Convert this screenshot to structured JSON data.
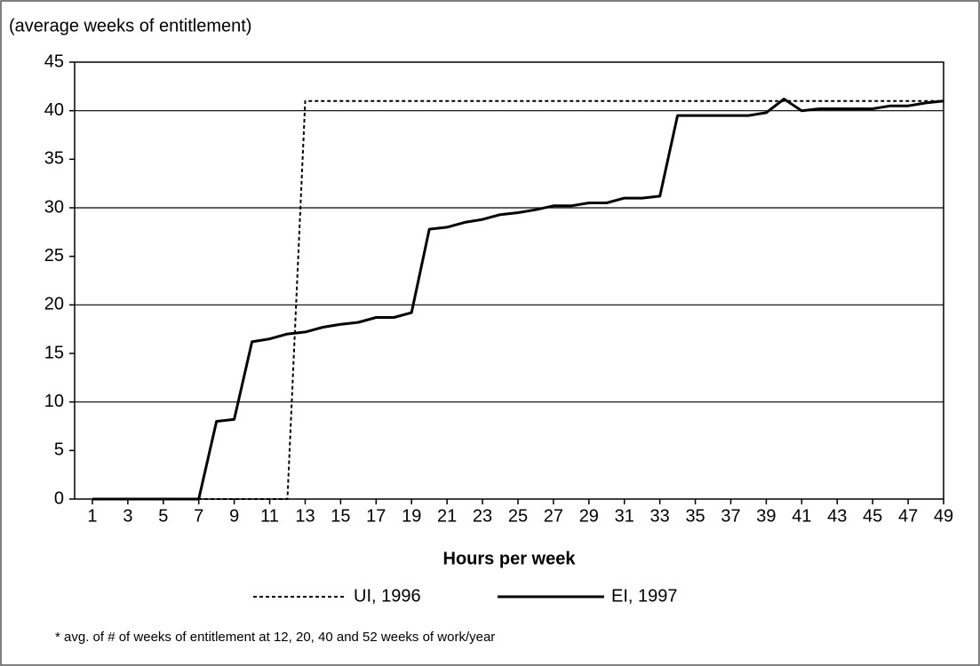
{
  "chart_data": {
    "type": "line",
    "y_label": "(average weeks of entitlement)",
    "x_label": "Hours per week",
    "footnote": "* avg. of # of weeks of entitlement at 12, 20, 40 and 52 weeks of work/year",
    "x": [
      1,
      2,
      3,
      4,
      5,
      6,
      7,
      8,
      9,
      10,
      11,
      12,
      13,
      14,
      15,
      16,
      17,
      18,
      19,
      20,
      21,
      22,
      23,
      24,
      25,
      26,
      27,
      28,
      29,
      30,
      31,
      32,
      33,
      34,
      35,
      36,
      37,
      38,
      39,
      40,
      41,
      42,
      43,
      44,
      45,
      46,
      47,
      48,
      49
    ],
    "xlim": [
      0,
      49
    ],
    "xticks": [
      1,
      3,
      5,
      7,
      9,
      11,
      13,
      15,
      17,
      19,
      21,
      23,
      25,
      27,
      29,
      31,
      33,
      35,
      37,
      39,
      41,
      43,
      45,
      47,
      49
    ],
    "ylim": [
      0,
      45
    ],
    "yticks": [
      0,
      5,
      10,
      15,
      20,
      25,
      30,
      35,
      40,
      45
    ],
    "grid": true,
    "series": [
      {
        "name": "UI, 1996",
        "color": "#000000",
        "style": "dotted",
        "values": [
          0,
          0,
          0,
          0,
          0,
          0,
          0,
          0,
          0,
          0,
          0,
          0,
          41,
          41,
          41,
          41,
          41,
          41,
          41,
          41,
          41,
          41,
          41,
          41,
          41,
          41,
          41,
          41,
          41,
          41,
          41,
          41,
          41,
          41,
          41,
          41,
          41,
          41,
          41,
          41,
          41,
          41,
          41,
          41,
          41,
          41,
          41,
          41,
          41
        ]
      },
      {
        "name": "EI, 1997",
        "color": "#000000",
        "style": "solid",
        "values": [
          0,
          0,
          0,
          0,
          0,
          0,
          0,
          8.0,
          8.2,
          16.2,
          16.5,
          17.0,
          17.2,
          17.7,
          18.0,
          18.2,
          18.7,
          18.7,
          19.2,
          27.8,
          28.0,
          28.5,
          28.8,
          29.3,
          29.5,
          29.8,
          30.2,
          30.2,
          30.5,
          30.5,
          31.0,
          31.0,
          31.2,
          39.5,
          39.5,
          39.5,
          39.5,
          39.5,
          39.8,
          41.2,
          40.0,
          40.2,
          40.2,
          40.2,
          40.2,
          40.5,
          40.5,
          40.8,
          41.0
        ]
      }
    ]
  }
}
